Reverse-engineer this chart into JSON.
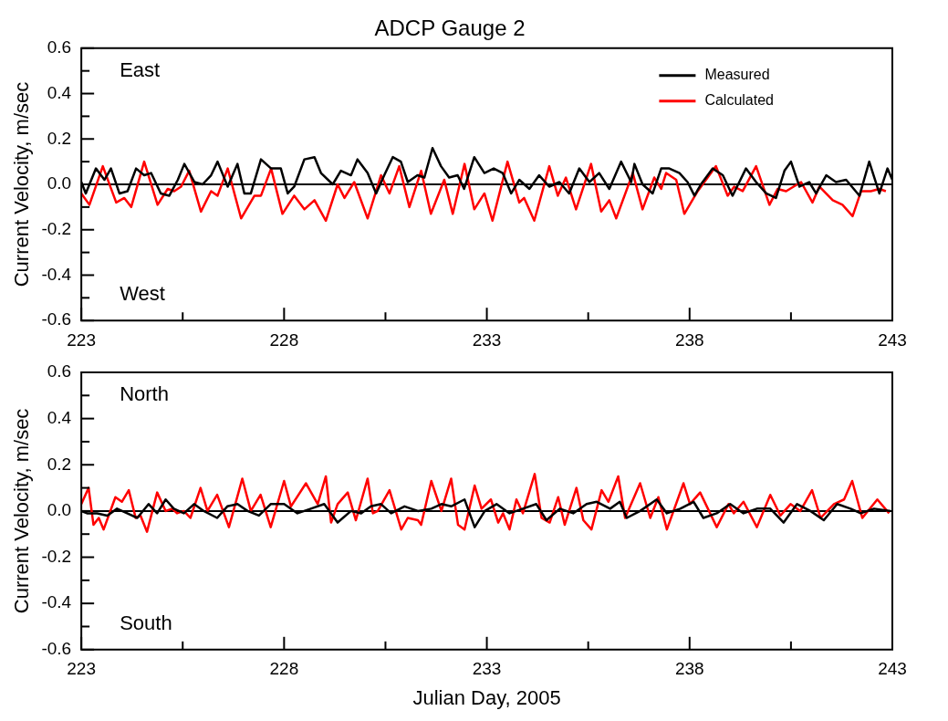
{
  "chart_data": [
    {
      "type": "line",
      "title": "ADCP Gauge 2",
      "ylabel": "Current Velocity, m/sec",
      "annotations": [
        "East",
        "West"
      ],
      "xlim": [
        223,
        243
      ],
      "xticks": [
        223,
        {
          "value": 225.5,
          "label": null
        },
        228,
        {
          "value": 230.5,
          "label": null
        },
        233,
        {
          "value": 235.5,
          "label": null
        },
        238,
        {
          "value": 240.5,
          "label": null
        },
        243
      ],
      "ylim": [
        -0.6,
        0.6
      ],
      "yticks": [
        -0.6,
        {
          "value": -0.5,
          "label": null
        },
        -0.4,
        {
          "value": -0.3,
          "label": null
        },
        -0.2,
        {
          "value": -0.1,
          "label": null
        },
        {
          "value": 0,
          "label": "0.0"
        },
        {
          "value": 0.1,
          "label": null
        },
        0.2,
        {
          "value": 0.3,
          "label": null
        },
        0.4,
        {
          "value": 0.5,
          "label": null
        },
        0.6
      ],
      "grid": false,
      "legend": "top right",
      "ref_lines": [
        {
          "axis": "y",
          "value": 0,
          "color": "#000000"
        }
      ],
      "series": [
        {
          "name": "Measured",
          "color": "#000000",
          "x": [
            223.0,
            223.11,
            223.36,
            223.57,
            223.73,
            223.94,
            224.14,
            224.35,
            224.55,
            224.72,
            224.96,
            225.17,
            225.38,
            225.54,
            225.79,
            225.99,
            226.2,
            226.36,
            226.61,
            226.85,
            227.02,
            227.18,
            227.43,
            227.68,
            227.92,
            228.09,
            228.25,
            228.5,
            228.75,
            228.91,
            229.2,
            229.4,
            229.65,
            229.81,
            230.06,
            230.27,
            230.47,
            230.68,
            230.88,
            231.05,
            231.29,
            231.46,
            231.66,
            231.87,
            232.07,
            232.28,
            232.44,
            232.69,
            232.94,
            233.17,
            233.39,
            233.6,
            233.8,
            234.05,
            234.29,
            234.54,
            234.79,
            235.03,
            235.28,
            235.53,
            235.77,
            236.02,
            236.31,
            236.56,
            236.64,
            236.84,
            237.09,
            237.3,
            237.5,
            237.75,
            237.95,
            238.12,
            238.28,
            238.57,
            238.82,
            239.06,
            239.39,
            239.64,
            239.89,
            240.13,
            240.34,
            240.5,
            240.71,
            240.95,
            241.12,
            241.37,
            241.61,
            241.86,
            242.19,
            242.43,
            242.68,
            242.88,
            243.0
          ],
          "values": [
            0.01,
            -0.04,
            0.07,
            0.02,
            0.07,
            -0.04,
            -0.03,
            0.07,
            0.04,
            0.05,
            -0.04,
            -0.05,
            0.02,
            0.09,
            0.01,
            0.0,
            0.04,
            0.1,
            -0.01,
            0.09,
            -0.04,
            -0.04,
            0.11,
            0.07,
            0.07,
            -0.04,
            -0.01,
            0.11,
            0.12,
            0.05,
            0.0,
            0.06,
            0.04,
            0.11,
            0.05,
            -0.04,
            0.04,
            0.12,
            0.1,
            0.01,
            0.04,
            0.03,
            0.16,
            0.08,
            0.03,
            0.04,
            -0.02,
            0.12,
            0.05,
            0.07,
            0.05,
            -0.04,
            0.02,
            -0.02,
            0.04,
            -0.01,
            0.01,
            -0.04,
            0.07,
            0.01,
            0.05,
            -0.02,
            0.1,
            0.01,
            0.09,
            0.0,
            -0.04,
            0.07,
            0.07,
            0.05,
            0.01,
            -0.05,
            0.0,
            0.07,
            0.04,
            -0.05,
            0.07,
            0.01,
            -0.04,
            -0.06,
            0.06,
            0.1,
            -0.01,
            0.01,
            -0.04,
            0.04,
            0.01,
            0.02,
            -0.05,
            0.1,
            -0.04,
            0.07,
            0.02
          ]
        },
        {
          "name": "Calculated",
          "color": "#ff0000",
          "x": [
            223.0,
            223.2,
            223.53,
            223.86,
            224.06,
            224.23,
            224.55,
            224.88,
            225.13,
            225.29,
            225.46,
            225.66,
            225.95,
            226.2,
            226.36,
            226.61,
            226.94,
            227.27,
            227.43,
            227.68,
            227.96,
            228.25,
            228.5,
            228.75,
            229.03,
            229.32,
            229.49,
            229.73,
            230.06,
            230.39,
            230.6,
            230.84,
            231.09,
            231.38,
            231.62,
            231.95,
            232.16,
            232.45,
            232.69,
            232.94,
            233.14,
            233.51,
            233.8,
            233.92,
            234.17,
            234.54,
            234.75,
            234.95,
            235.2,
            235.57,
            235.82,
            236.02,
            236.19,
            236.6,
            236.84,
            237.13,
            237.3,
            237.42,
            237.67,
            237.87,
            238.2,
            238.65,
            238.94,
            239.1,
            239.31,
            239.64,
            239.97,
            240.17,
            240.38,
            240.75,
            241.03,
            241.2,
            241.53,
            241.77,
            242.02,
            242.23,
            242.47,
            242.68,
            242.84
          ],
          "values": [
            -0.04,
            -0.09,
            0.08,
            -0.08,
            -0.06,
            -0.1,
            0.1,
            -0.09,
            -0.02,
            -0.03,
            -0.01,
            0.06,
            -0.12,
            -0.03,
            -0.05,
            0.07,
            -0.15,
            -0.05,
            -0.05,
            0.07,
            -0.13,
            -0.05,
            -0.11,
            -0.07,
            -0.16,
            0.0,
            -0.06,
            0.01,
            -0.15,
            0.04,
            -0.04,
            0.08,
            -0.1,
            0.06,
            -0.13,
            0.02,
            -0.13,
            0.09,
            -0.11,
            -0.04,
            -0.16,
            0.1,
            -0.08,
            -0.06,
            -0.16,
            0.08,
            -0.05,
            0.03,
            -0.11,
            0.09,
            -0.12,
            -0.07,
            -0.15,
            0.05,
            -0.11,
            0.03,
            -0.02,
            0.05,
            0.02,
            -0.13,
            -0.03,
            0.08,
            -0.05,
            -0.01,
            -0.03,
            0.08,
            -0.09,
            -0.02,
            -0.03,
            0.01,
            -0.08,
            -0.01,
            -0.07,
            -0.09,
            -0.14,
            -0.03,
            -0.03,
            -0.02,
            -0.03
          ]
        }
      ]
    },
    {
      "type": "line",
      "xlabel": "Julian Day, 2005",
      "ylabel": "Current Velocity, m/sec",
      "annotations": [
        "North",
        "South"
      ],
      "xlim": [
        223,
        243
      ],
      "xticks": [
        223,
        {
          "value": 225.5,
          "label": null
        },
        228,
        {
          "value": 230.5,
          "label": null
        },
        233,
        {
          "value": 235.5,
          "label": null
        },
        238,
        {
          "value": 240.5,
          "label": null
        },
        243
      ],
      "ylim": [
        -0.6,
        0.6
      ],
      "yticks": [
        -0.6,
        {
          "value": -0.5,
          "label": null
        },
        -0.4,
        {
          "value": -0.3,
          "label": null
        },
        -0.2,
        {
          "value": -0.1,
          "label": null
        },
        {
          "value": 0,
          "label": "0.0"
        },
        {
          "value": 0.1,
          "label": null
        },
        0.2,
        {
          "value": 0.3,
          "label": null
        },
        0.4,
        {
          "value": 0.5,
          "label": null
        },
        0.6
      ],
      "grid": false,
      "ref_lines": [
        {
          "axis": "y",
          "value": 0,
          "color": "#000000"
        }
      ],
      "series": [
        {
          "color": "#000000",
          "x": [
            223.0,
            223.14,
            223.39,
            223.64,
            223.88,
            224.13,
            224.38,
            224.66,
            224.87,
            225.08,
            225.28,
            225.53,
            225.78,
            226.02,
            226.35,
            226.6,
            226.85,
            227.1,
            227.38,
            227.67,
            228.0,
            228.33,
            228.66,
            228.99,
            229.32,
            229.65,
            229.9,
            230.14,
            230.39,
            230.64,
            230.97,
            231.3,
            231.63,
            231.88,
            232.12,
            232.45,
            232.7,
            232.95,
            233.24,
            233.56,
            233.89,
            234.22,
            234.47,
            234.8,
            235.13,
            235.46,
            235.71,
            236.04,
            236.28,
            236.45,
            236.78,
            237.19,
            237.44,
            237.77,
            238.1,
            238.34,
            238.67,
            239.0,
            239.33,
            239.66,
            239.99,
            240.32,
            240.65,
            240.98,
            241.31,
            241.64,
            241.97,
            242.22,
            242.55,
            242.96
          ],
          "values": [
            0.0,
            -0.01,
            -0.01,
            -0.02,
            0.01,
            -0.01,
            -0.03,
            0.03,
            -0.01,
            0.05,
            0.01,
            -0.01,
            0.03,
            0.0,
            -0.03,
            0.02,
            0.03,
            0.0,
            -0.02,
            0.03,
            0.03,
            -0.01,
            0.01,
            0.03,
            -0.05,
            0.0,
            -0.01,
            0.02,
            0.03,
            -0.01,
            0.02,
            0.0,
            0.01,
            0.03,
            0.02,
            0.05,
            -0.07,
            0.0,
            0.03,
            -0.01,
            0.01,
            0.03,
            -0.04,
            0.01,
            -0.01,
            0.03,
            0.04,
            0.01,
            0.04,
            -0.03,
            0.0,
            0.05,
            -0.01,
            0.01,
            0.04,
            -0.03,
            -0.01,
            0.03,
            -0.01,
            0.01,
            0.01,
            -0.05,
            0.03,
            0.0,
            -0.04,
            0.03,
            0.01,
            -0.01,
            0.01,
            0.0
          ]
        },
        {
          "color": "#ff0000",
          "x": [
            223.0,
            223.18,
            223.3,
            223.43,
            223.55,
            223.84,
            224.0,
            224.17,
            224.34,
            224.46,
            224.62,
            224.87,
            225.08,
            225.24,
            225.36,
            225.53,
            225.69,
            225.94,
            226.11,
            226.35,
            226.64,
            226.97,
            227.18,
            227.42,
            227.67,
            228.0,
            228.17,
            228.54,
            228.83,
            229.03,
            229.16,
            229.32,
            229.57,
            229.77,
            230.06,
            230.19,
            230.31,
            230.6,
            230.89,
            231.05,
            231.3,
            231.38,
            231.63,
            231.88,
            232.12,
            232.29,
            232.45,
            232.7,
            232.87,
            233.1,
            233.28,
            233.4,
            233.56,
            233.73,
            233.89,
            234.18,
            234.35,
            234.55,
            234.76,
            234.92,
            235.21,
            235.38,
            235.58,
            235.83,
            236.0,
            236.24,
            236.41,
            236.78,
            237.03,
            237.23,
            237.44,
            237.85,
            238.01,
            238.26,
            238.67,
            238.96,
            239.09,
            239.33,
            239.66,
            239.99,
            240.24,
            240.49,
            240.73,
            241.02,
            241.23,
            241.56,
            241.81,
            242.01,
            242.26,
            242.63,
            242.92
          ],
          "values": [
            0.03,
            0.1,
            -0.06,
            -0.03,
            -0.08,
            0.06,
            0.04,
            0.09,
            -0.03,
            -0.02,
            -0.09,
            0.08,
            0.0,
            0.01,
            -0.01,
            0.0,
            -0.03,
            0.1,
            0.0,
            0.07,
            -0.07,
            0.14,
            0.0,
            0.07,
            -0.07,
            0.13,
            0.02,
            0.12,
            0.03,
            0.15,
            -0.05,
            0.03,
            0.08,
            -0.04,
            0.14,
            -0.01,
            0.0,
            0.09,
            -0.08,
            -0.03,
            -0.04,
            -0.06,
            0.13,
            0.0,
            0.14,
            -0.06,
            -0.08,
            0.11,
            0.01,
            0.05,
            -0.05,
            -0.01,
            -0.08,
            0.05,
            -0.01,
            0.16,
            -0.03,
            -0.05,
            0.06,
            -0.06,
            0.1,
            -0.04,
            -0.08,
            0.09,
            0.04,
            0.15,
            -0.03,
            0.12,
            -0.03,
            0.06,
            -0.08,
            0.12,
            0.03,
            0.08,
            -0.07,
            0.03,
            -0.01,
            0.04,
            -0.07,
            0.07,
            -0.02,
            0.03,
            0.0,
            0.09,
            -0.03,
            0.03,
            0.05,
            0.13,
            -0.03,
            0.05,
            -0.01
          ]
        }
      ]
    }
  ]
}
